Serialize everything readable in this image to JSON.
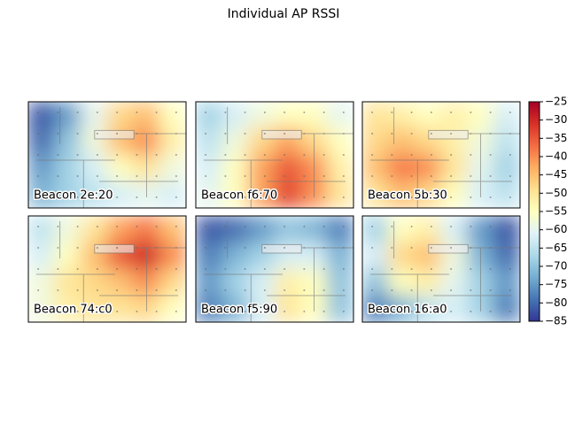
{
  "chart_data": {
    "type": "heatmap",
    "title": "Individual AP RSSI",
    "clim": [
      -85,
      -25
    ],
    "cticks": [
      {
        "value": -25,
        "label": "−25"
      },
      {
        "value": -30,
        "label": "−30"
      },
      {
        "value": -35,
        "label": "−35"
      },
      {
        "value": -40,
        "label": "−40"
      },
      {
        "value": -45,
        "label": "−45"
      },
      {
        "value": -50,
        "label": "−50"
      },
      {
        "value": -55,
        "label": "−55"
      },
      {
        "value": -60,
        "label": "−60"
      },
      {
        "value": -65,
        "label": "−65"
      },
      {
        "value": -70,
        "label": "−70"
      },
      {
        "value": -75,
        "label": "−75"
      },
      {
        "value": -80,
        "label": "−80"
      },
      {
        "value": -85,
        "label": "−85"
      }
    ],
    "colors": [
      "#313695",
      "#4575b4",
      "#74add1",
      "#abd9e9",
      "#e0f3f8",
      "#ffffbf",
      "#fee090",
      "#fdae61",
      "#f46d43",
      "#d73027",
      "#a50026"
    ],
    "panels": [
      {
        "name": "Beacon 2e:20",
        "values": [
          [
            -82,
            -75,
            -60,
            -48,
            -45,
            -55
          ],
          [
            -80,
            -70,
            -58,
            -45,
            -40,
            -52
          ],
          [
            -75,
            -68,
            -62,
            -55,
            -50,
            -58
          ],
          [
            -72,
            -68,
            -65,
            -62,
            -60,
            -62
          ]
        ]
      },
      {
        "name": "Beacon f6:70",
        "values": [
          [
            -68,
            -62,
            -58,
            -55,
            -55,
            -60
          ],
          [
            -65,
            -58,
            -48,
            -42,
            -48,
            -55
          ],
          [
            -62,
            -55,
            -42,
            -35,
            -40,
            -52
          ],
          [
            -60,
            -55,
            -42,
            -33,
            -40,
            -50
          ]
        ]
      },
      {
        "name": "Beacon 5b:30",
        "values": [
          [
            -50,
            -52,
            -55,
            -52,
            -55,
            -62
          ],
          [
            -48,
            -45,
            -48,
            -52,
            -58,
            -65
          ],
          [
            -45,
            -38,
            -40,
            -50,
            -60,
            -68
          ],
          [
            -50,
            -45,
            -48,
            -55,
            -62,
            -65
          ]
        ]
      },
      {
        "name": "Beacon 74:c0",
        "values": [
          [
            -65,
            -58,
            -50,
            -42,
            -38,
            -45
          ],
          [
            -62,
            -55,
            -45,
            -35,
            -30,
            -40
          ],
          [
            -58,
            -50,
            -48,
            -45,
            -40,
            -48
          ],
          [
            -58,
            -52,
            -50,
            -50,
            -48,
            -55
          ]
        ]
      },
      {
        "name": "Beacon f5:90",
        "values": [
          [
            -82,
            -80,
            -75,
            -70,
            -72,
            -78
          ],
          [
            -78,
            -72,
            -68,
            -62,
            -62,
            -72
          ],
          [
            -75,
            -68,
            -62,
            -52,
            -55,
            -70
          ],
          [
            -78,
            -72,
            -62,
            -50,
            -55,
            -70
          ]
        ]
      },
      {
        "name": "Beacon 16:a0",
        "values": [
          [
            -68,
            -55,
            -52,
            -62,
            -75,
            -82
          ],
          [
            -62,
            -48,
            -45,
            -58,
            -72,
            -80
          ],
          [
            -70,
            -55,
            -52,
            -60,
            -68,
            -75
          ],
          [
            -78,
            -72,
            -65,
            -62,
            -68,
            -78
          ]
        ]
      }
    ]
  }
}
